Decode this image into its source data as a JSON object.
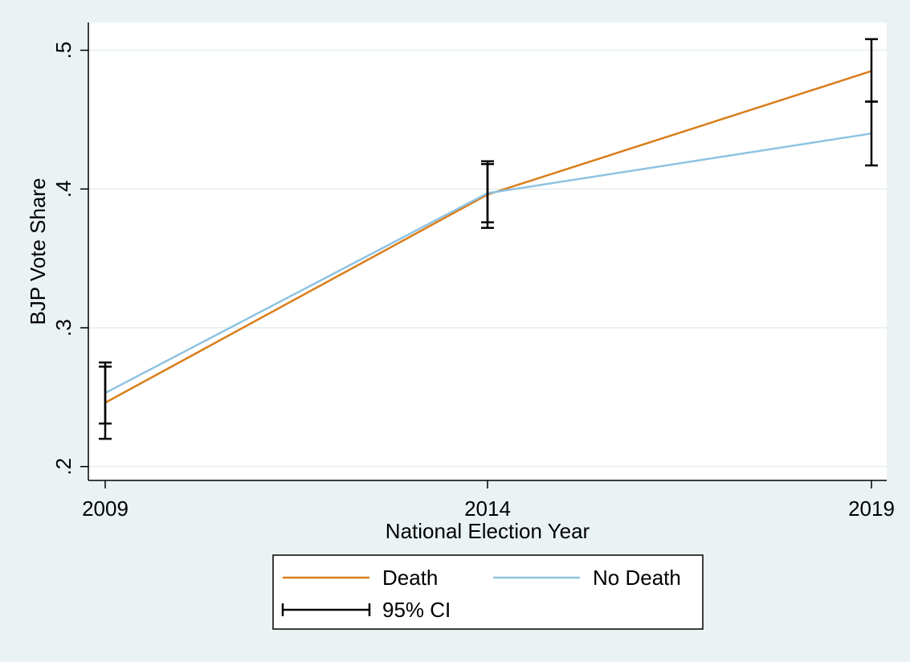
{
  "colors": {
    "background": "#eaf2f3",
    "plot_background": "#ffffff",
    "grid": "#eaf2f3",
    "ci": "#000000"
  },
  "chart_data": {
    "type": "line",
    "xlabel": "National Election Year",
    "ylabel": "BJP Vote Share",
    "x": [
      2009,
      2014,
      2019
    ],
    "xticks": [
      "2009",
      "2014",
      "2019"
    ],
    "yticks": [
      ".2",
      ".3",
      ".4",
      ".5"
    ],
    "ytick_values": [
      0.2,
      0.3,
      0.4,
      0.5
    ],
    "ylim": [
      0.19,
      0.52
    ],
    "grid": true,
    "series": [
      {
        "name": "Death",
        "color": "#d97e1a",
        "values": [
          0.246,
          0.396,
          0.485
        ],
        "ci": [
          [
            0.22,
            0.272
          ],
          [
            0.372,
            0.42
          ],
          [
            0.463,
            0.508
          ]
        ]
      },
      {
        "name": "No Death",
        "color": "#8ec3e2",
        "values": [
          0.253,
          0.397,
          0.44
        ],
        "ci": [
          [
            0.231,
            0.275
          ],
          [
            0.376,
            0.418
          ],
          [
            0.417,
            0.463
          ]
        ]
      }
    ],
    "legend": {
      "position": "bottom",
      "entries": [
        "Death",
        "No Death",
        "95% CI"
      ]
    }
  }
}
